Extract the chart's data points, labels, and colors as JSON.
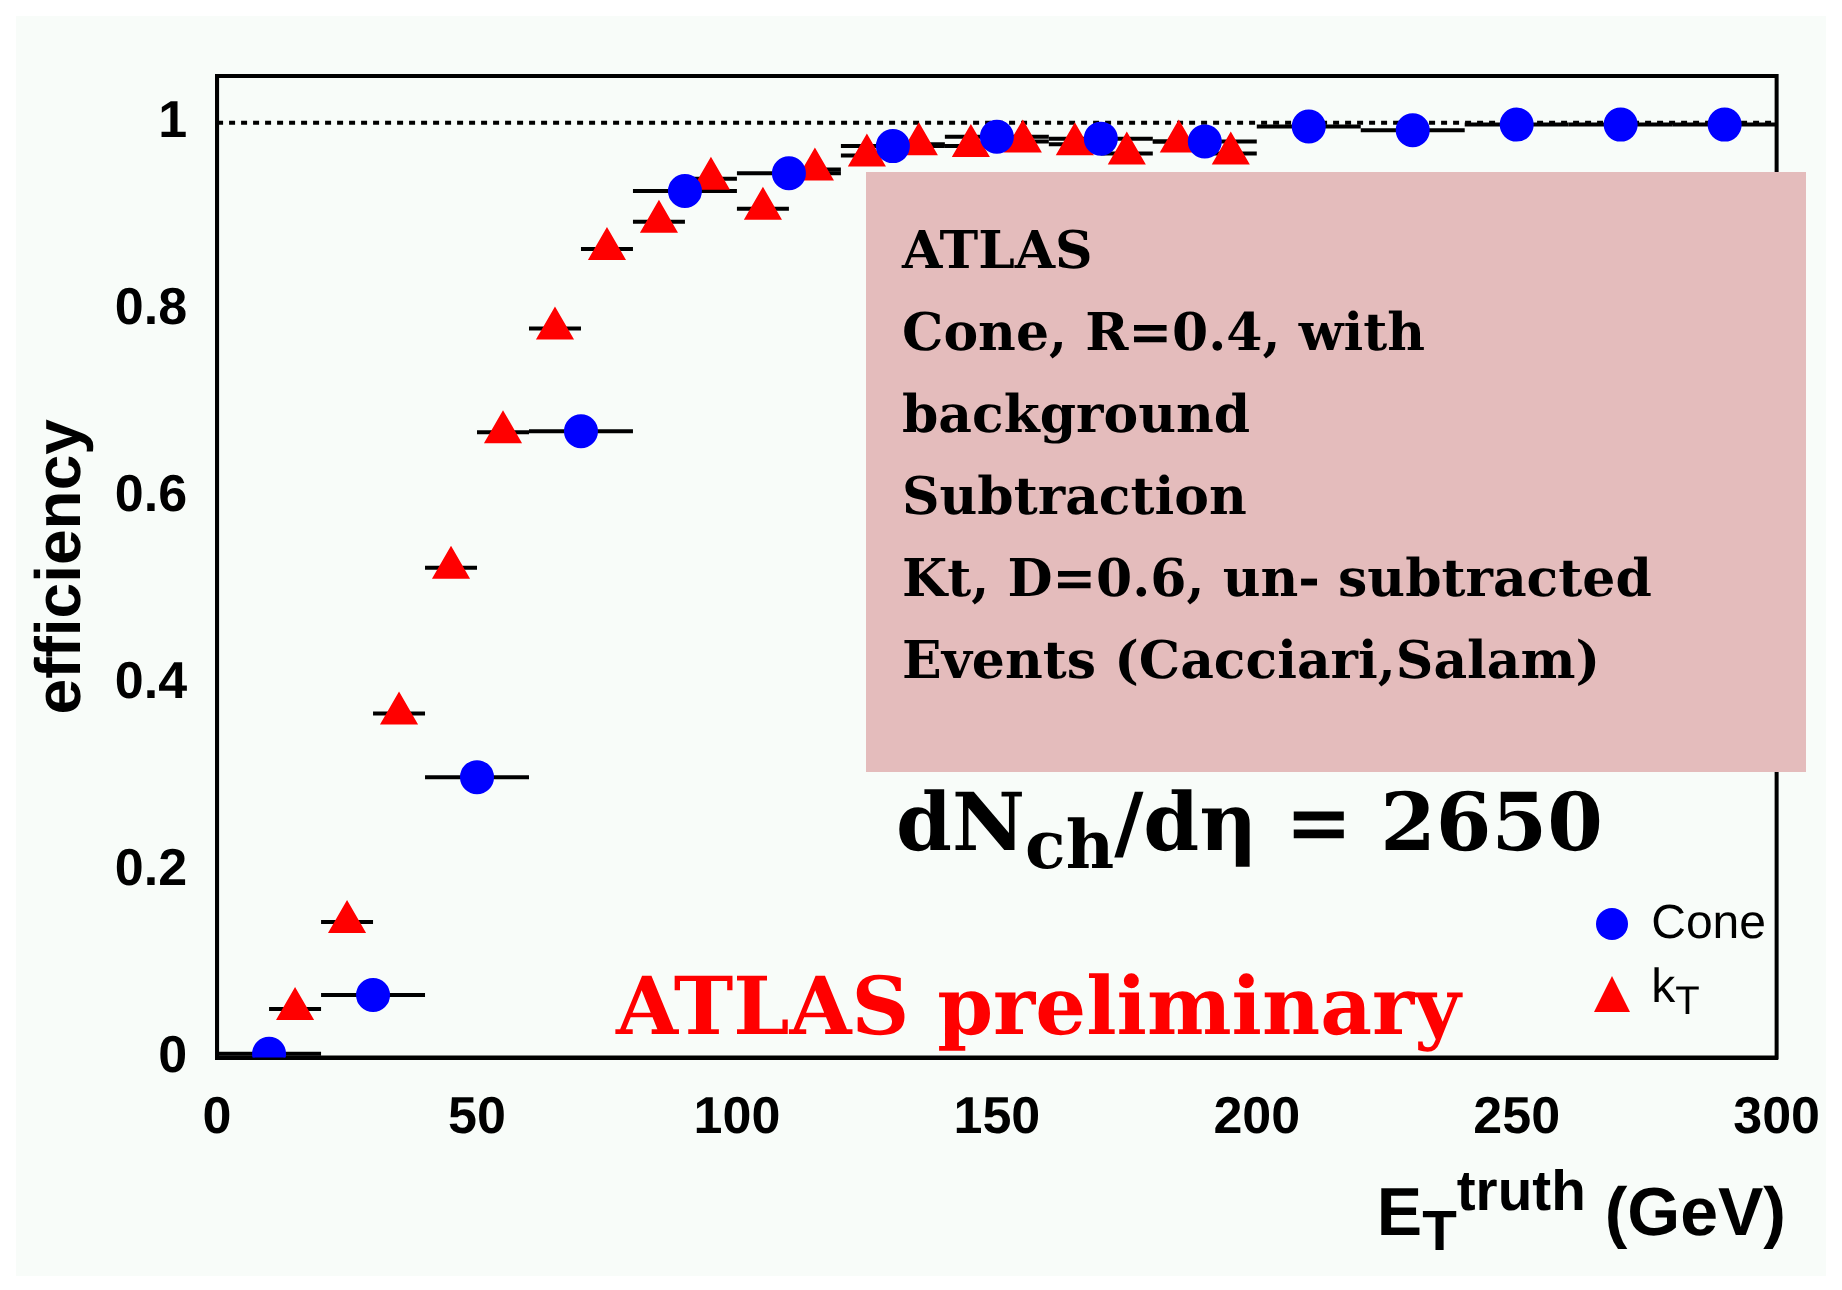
{
  "chart_data": {
    "type": "scatter",
    "xlabel": "E$_{T}$$^{truth}$ (GeV)",
    "ylabel": "efficiency",
    "xlim": [
      0,
      300
    ],
    "xticks": [
      0,
      50,
      100,
      150,
      200,
      250,
      300
    ],
    "ylim": [
      0,
      1.05
    ],
    "yticks": [
      0,
      0.2,
      0.4,
      0.6,
      0.8,
      1
    ],
    "grid": false,
    "legend": "bottom right",
    "ref_lines": [
      {
        "axis": "y",
        "value": 1,
        "color": "#000000",
        "line_style": "dotted"
      }
    ],
    "annotations": [
      "ATLAS\nCone, R=0.4, with\nbackground\nSubtraction\nKt, D=0.6, un- subtracted\nEvents (Cacciari,Salam)",
      "dN$_{ch}$/dη = 2650",
      "ATLAS preliminary"
    ],
    "series": [
      {
        "name": "Cone",
        "color": "#0000ff",
        "marker": "circle",
        "x": [
          10,
          30,
          50,
          70,
          90,
          110,
          130,
          150,
          170,
          190,
          210,
          230,
          250,
          270,
          290
        ],
        "values": [
          0.004,
          0.067,
          0.3,
          0.67,
          0.927,
          0.946,
          0.975,
          0.985,
          0.983,
          0.98,
          0.996,
          0.992,
          0.998,
          0.998,
          0.998
        ],
        "xerrors": [
          10,
          10,
          10,
          10,
          10,
          10,
          10,
          10,
          10,
          10,
          10,
          10,
          10,
          10,
          10
        ]
      },
      {
        "name": "k$_{T}$",
        "color": "#ff0000",
        "marker": "triangle",
        "x": [
          15,
          25,
          35,
          45,
          55,
          65,
          75,
          85,
          95,
          105,
          115,
          125,
          135,
          145,
          155,
          165,
          175,
          185,
          195
        ],
        "values": [
          0.052,
          0.145,
          0.368,
          0.524,
          0.669,
          0.78,
          0.865,
          0.894,
          0.94,
          0.908,
          0.95,
          0.965,
          0.977,
          0.975,
          0.98,
          0.977,
          0.967,
          0.98,
          0.967
        ],
        "xerrors": [
          5,
          5,
          5,
          5,
          5,
          5,
          5,
          5,
          5,
          5,
          5,
          5,
          5,
          5,
          5,
          5,
          5,
          5,
          5
        ]
      }
    ]
  }
}
